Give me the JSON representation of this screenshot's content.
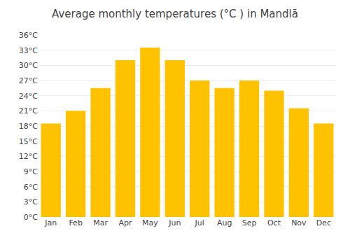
{
  "chart_data": {
    "type": "bar",
    "title": "Average monthly temperatures (°C ) in Mandlā",
    "categories": [
      "Jan",
      "Feb",
      "Mar",
      "Apr",
      "May",
      "Jun",
      "Jul",
      "Aug",
      "Sep",
      "Oct",
      "Nov",
      "Dec"
    ],
    "values": [
      18.5,
      21.0,
      25.5,
      31.0,
      33.5,
      31.0,
      27.0,
      25.5,
      27.0,
      25.0,
      21.5,
      18.5
    ],
    "color": "#FFC200",
    "ylim": [
      0,
      36
    ],
    "yticks": [
      {
        "value": 0,
        "label": "0°C"
      },
      {
        "value": 3,
        "label": "3°C"
      },
      {
        "value": 6,
        "label": "6°C"
      },
      {
        "value": 9,
        "label": "9°C"
      },
      {
        "value": 12,
        "label": "12°C"
      },
      {
        "value": 15,
        "label": "15°C"
      },
      {
        "value": 18,
        "label": "18°C"
      },
      {
        "value": 21,
        "label": "21°C"
      },
      {
        "value": 24,
        "label": "24°C"
      },
      {
        "value": 27,
        "label": "27°C"
      },
      {
        "value": 30,
        "label": "30°C"
      },
      {
        "value": 33,
        "label": "33°C"
      },
      {
        "value": 36,
        "label": "36°C"
      }
    ],
    "grid": true
  }
}
